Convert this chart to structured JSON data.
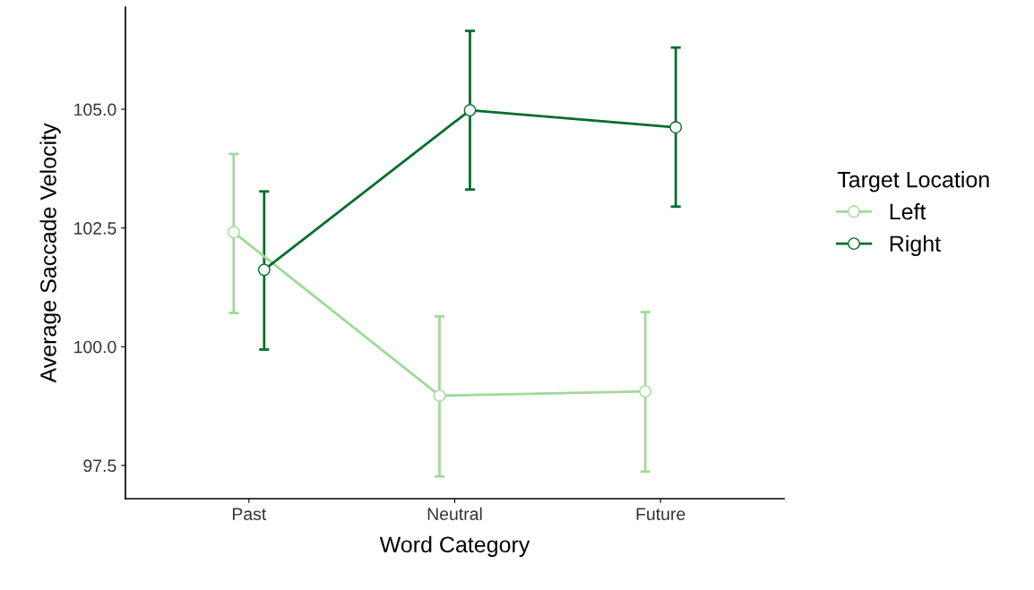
{
  "chart_data": {
    "type": "line",
    "xlabel": "Word Category",
    "ylabel": "Average Saccade Velocity",
    "legend_title": "Target Location",
    "categories": [
      "Past",
      "Neutral",
      "Future"
    ],
    "series": [
      {
        "name": "Left",
        "color": "#a1d99b",
        "values": [
          102.41,
          98.97,
          99.06
        ],
        "errors": [
          [
            100.71,
            104.06
          ],
          [
            97.27,
            100.64
          ],
          [
            97.37,
            100.73
          ]
        ]
      },
      {
        "name": "Right",
        "color": "#006d2c",
        "values": [
          101.62,
          104.98,
          104.62
        ],
        "errors": [
          [
            99.94,
            103.27
          ],
          [
            103.31,
            106.65
          ],
          [
            102.95,
            106.3
          ]
        ]
      }
    ],
    "ylim": [
      96.8,
      107.15
    ],
    "yticks": [
      {
        "value": 97.5,
        "label": "97.5"
      },
      {
        "value": 100,
        "label": "100.0"
      },
      {
        "value": 102.5,
        "label": "102.5"
      },
      {
        "value": 105,
        "label": "105.0"
      }
    ],
    "grid": false,
    "legend": "right",
    "marker": "circle",
    "line_style": "solid"
  }
}
